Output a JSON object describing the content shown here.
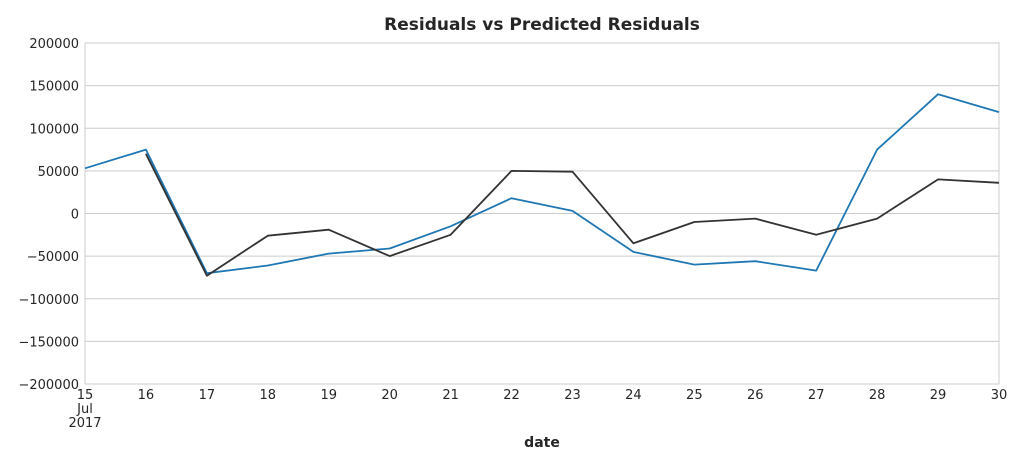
{
  "chart_data": {
    "type": "line",
    "title": "Residuals vs Predicted Residuals",
    "xlabel": "date",
    "ylabel": "",
    "grid": "horizontal",
    "x": [
      "2017-07-15",
      "2017-07-16",
      "2017-07-17",
      "2017-07-18",
      "2017-07-19",
      "2017-07-20",
      "2017-07-21",
      "2017-07-22",
      "2017-07-23",
      "2017-07-24",
      "2017-07-25",
      "2017-07-26",
      "2017-07-27",
      "2017-07-28",
      "2017-07-29",
      "2017-07-30"
    ],
    "x_tick_labels": [
      "15",
      "16",
      "17",
      "18",
      "19",
      "20",
      "21",
      "22",
      "23",
      "24",
      "25",
      "26",
      "27",
      "28",
      "29",
      "30"
    ],
    "x_first_tick_extra": [
      "Jul",
      "2017"
    ],
    "ylim": [
      -200000,
      200000
    ],
    "y_ticks": [
      200000,
      150000,
      100000,
      50000,
      0,
      -50000,
      -100000,
      -150000,
      -200000
    ],
    "y_tick_labels": [
      "200000",
      "150000",
      "100000",
      "50000",
      "0",
      "−50000",
      "−100000",
      "−150000",
      "−200000"
    ],
    "series": [
      {
        "color": "#1f77b4",
        "values": [
          53000,
          75000,
          -70000,
          -61000,
          -47000,
          -41000,
          -15000,
          18000,
          3000,
          -45000,
          -60000,
          -56000,
          -67000,
          75000,
          140000,
          119000
        ]
      },
      {
        "color": "#333333",
        "values": [
          null,
          70000,
          -73000,
          -26000,
          -19000,
          -50000,
          -25000,
          50000,
          49000,
          -35000,
          -10000,
          -6000,
          -25000,
          -6000,
          40000,
          36000
        ]
      }
    ]
  }
}
